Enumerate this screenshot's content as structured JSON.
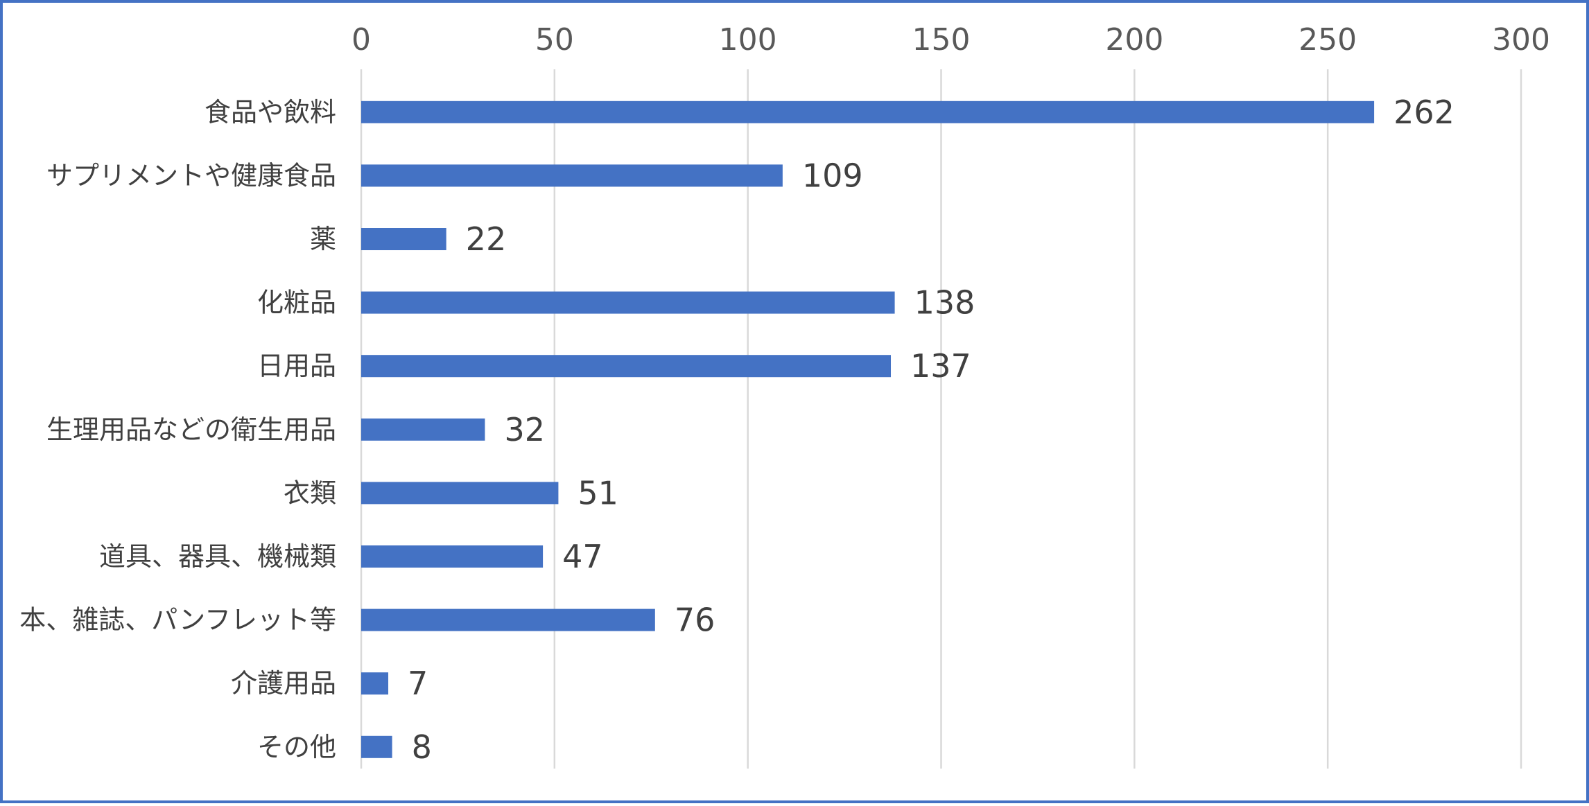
{
  "chart_data": {
    "type": "bar",
    "orientation": "horizontal",
    "categories": [
      "食品や飲料",
      "サプリメントや健康食品",
      "薬",
      "化粧品",
      "日用品",
      "生理用品などの衛生用品",
      "衣類",
      "道具、器具、機械類",
      "本、雑誌、パンフレット等",
      "介護用品",
      "その他"
    ],
    "values": [
      262,
      109,
      22,
      138,
      137,
      32,
      51,
      47,
      76,
      7,
      8
    ],
    "xlim": [
      0,
      300
    ],
    "xticks": [
      0,
      50,
      100,
      150,
      200,
      250,
      300
    ],
    "x_axis_position": "top",
    "grid": true,
    "legend": "none",
    "bar_color": "#4472c4",
    "border_color": "#4472c4"
  }
}
